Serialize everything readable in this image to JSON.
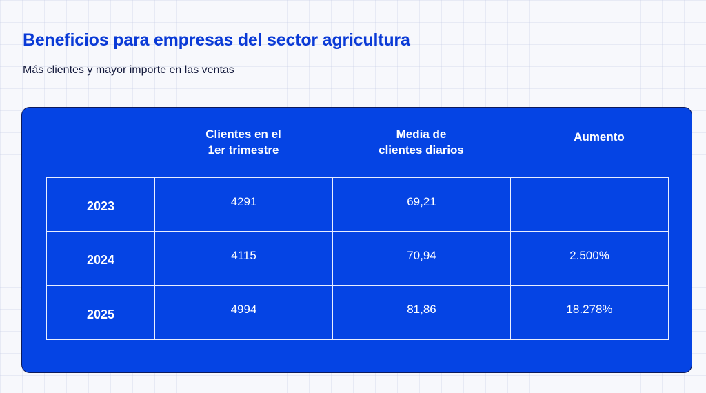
{
  "header": {
    "title": "Beneficios para empresas del sector agricultura",
    "subtitle": "Más clientes y mayor importe en las ventas"
  },
  "colors": {
    "card_background": "#0544e4",
    "title_color": "#0a3ad6",
    "text_on_card": "#ffffff"
  },
  "chart_data": {
    "type": "table",
    "columns": [
      {
        "lines": [
          "Clientes en el",
          "1er trimestre"
        ]
      },
      {
        "lines": [
          "Media de",
          "clientes diarios"
        ]
      },
      {
        "lines": [
          "Aumento"
        ]
      }
    ],
    "rows": [
      {
        "year": "2023",
        "clientes": "4291",
        "media": "69,21",
        "aumento": ""
      },
      {
        "year": "2024",
        "clientes": "4115",
        "media": "70,94",
        "aumento": "2.500%"
      },
      {
        "year": "2025",
        "clientes": "4994",
        "media": "81,86",
        "aumento": "18.278%"
      }
    ]
  }
}
